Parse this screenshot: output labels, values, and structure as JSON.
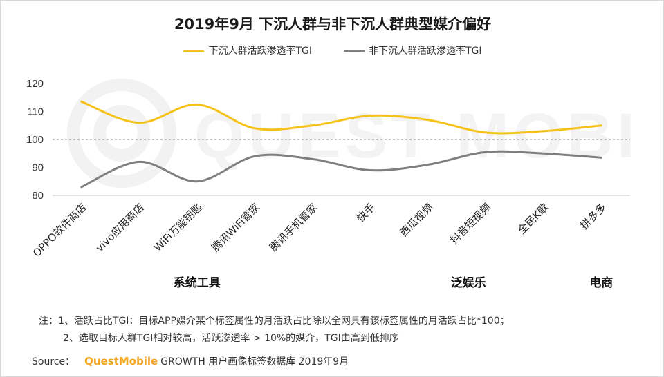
{
  "title": "2019年9月 下沉人群与非下沉人群典型媒介偏好",
  "watermark": "QUEST MOBILE",
  "colors": {
    "series1": "#f5c21b",
    "series2": "#7f7f7f",
    "brand": "#f5a623"
  },
  "chart_data": {
    "type": "line",
    "title": "2019年9月 下沉人群与非下沉人群典型媒介偏好",
    "categories": [
      "OPPO软件商店",
      "vivo应用商店",
      "WiFi万能钥匙",
      "腾讯WiFi管家",
      "腾讯手机管家",
      "快手",
      "西瓜视频",
      "抖音短视频",
      "全民K歌",
      "拼多多"
    ],
    "series": [
      {
        "name": "下沉人群活跃渗透率TGI",
        "values": [
          113.5,
          106,
          112.5,
          104,
          105,
          108.5,
          107,
          102.5,
          103,
          105
        ]
      },
      {
        "name": "非下沉人群活跃渗透率TGI",
        "values": [
          83,
          92,
          85,
          94,
          93,
          89,
          91,
          95.5,
          95,
          93.5
        ]
      }
    ],
    "ylim": [
      80,
      120
    ],
    "yticks": [
      80,
      90,
      100,
      110,
      120
    ],
    "reference_line": 100,
    "groups": [
      {
        "label": "系统工具",
        "center_index": 2
      },
      {
        "label": "泛娱乐",
        "center_index": 6.7
      },
      {
        "label": "电商",
        "center_index": 9
      }
    ],
    "legend_position": "top-center",
    "grid": false
  },
  "notes": {
    "line1": "注：1、活跃占比TGI：目标APP媒介某个标签属性的月活跃占比除以全网具有该标签属性的月活跃占比*100；",
    "line2": "2、选取目标人群TGI相对较高，活跃渗透率 > 10%的媒介，TGI由高到低排序"
  },
  "source": {
    "label": "Source：",
    "brand": "QuestMobile",
    "text": "GROWTH 用户画像标签数据库  2019年9月"
  }
}
